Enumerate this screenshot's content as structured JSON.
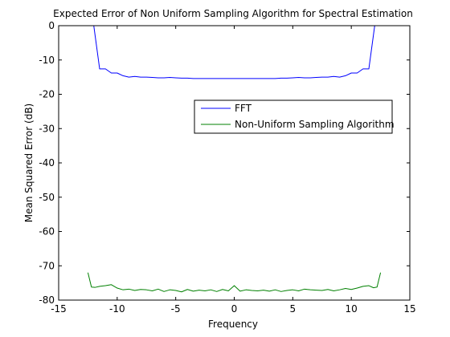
{
  "chart_data": {
    "type": "line",
    "title": "Expected Error of Non Uniform Sampling Algorithm for Spectral Estimation",
    "xlabel": "Frequency",
    "ylabel": "Mean Squared Error (dB)",
    "xlim": [
      -15,
      15
    ],
    "ylim": [
      -80,
      0
    ],
    "xticks": [
      -15,
      -10,
      -5,
      0,
      5,
      10,
      15
    ],
    "yticks": [
      0,
      -10,
      -20,
      -30,
      -40,
      -50,
      -60,
      -70,
      -80
    ],
    "grid": false,
    "legend_position": "center-right",
    "series": [
      {
        "name": "FFT",
        "color": "#0000ff",
        "x": [
          -12.5,
          -12.0,
          -11.5,
          -11.0,
          -10.5,
          -10.0,
          -9.5,
          -9.0,
          -8.5,
          -8.0,
          -7.5,
          -7.0,
          -6.5,
          -6.0,
          -5.5,
          -5.0,
          -4.5,
          -4.0,
          -3.5,
          -3.0,
          -2.5,
          -2.0,
          -1.5,
          -1.0,
          -0.5,
          0.0,
          0.5,
          1.0,
          1.5,
          2.0,
          2.5,
          3.0,
          3.5,
          4.0,
          4.5,
          5.0,
          5.5,
          6.0,
          6.5,
          7.0,
          7.5,
          8.0,
          8.5,
          9.0,
          9.5,
          10.0,
          10.5,
          11.0,
          11.5,
          12.0,
          12.5
        ],
        "y": [
          0,
          0,
          -12.6,
          -12.6,
          -13.8,
          -13.8,
          -14.6,
          -15.0,
          -14.8,
          -15.0,
          -15.0,
          -15.1,
          -15.2,
          -15.2,
          -15.1,
          -15.2,
          -15.3,
          -15.3,
          -15.4,
          -15.4,
          -15.4,
          -15.4,
          -15.4,
          -15.4,
          -15.4,
          -15.4,
          -15.4,
          -15.4,
          -15.4,
          -15.4,
          -15.4,
          -15.4,
          -15.4,
          -15.3,
          -15.3,
          -15.2,
          -15.1,
          -15.2,
          -15.2,
          -15.1,
          -15.0,
          -15.0,
          -14.8,
          -15.0,
          -14.6,
          -13.8,
          -13.8,
          -12.6,
          -12.6,
          0,
          0
        ]
      },
      {
        "name": "Non-Uniform Sampling Algorithm",
        "color": "#008000",
        "x": [
          -12.5,
          -12.2,
          -11.9,
          -11.5,
          -11.0,
          -10.5,
          -10.0,
          -9.5,
          -9.0,
          -8.5,
          -8.0,
          -7.5,
          -7.0,
          -6.5,
          -6.0,
          -5.5,
          -5.0,
          -4.5,
          -4.0,
          -3.5,
          -3.0,
          -2.5,
          -2.0,
          -1.5,
          -1.0,
          -0.5,
          0.0,
          0.5,
          1.0,
          1.5,
          2.0,
          2.5,
          3.0,
          3.5,
          4.0,
          4.5,
          5.0,
          5.5,
          6.0,
          6.5,
          7.0,
          7.5,
          8.0,
          8.5,
          9.0,
          9.5,
          10.0,
          10.5,
          11.0,
          11.5,
          11.9,
          12.2,
          12.5
        ],
        "y": [
          -72.0,
          -76.2,
          -76.3,
          -76.0,
          -75.8,
          -75.5,
          -76.5,
          -77.0,
          -76.8,
          -77.2,
          -76.9,
          -77.0,
          -77.3,
          -76.8,
          -77.5,
          -77.0,
          -77.2,
          -77.6,
          -76.9,
          -77.4,
          -77.1,
          -77.3,
          -77.0,
          -77.5,
          -76.9,
          -77.3,
          -75.8,
          -77.4,
          -77.0,
          -77.2,
          -77.3,
          -77.1,
          -77.4,
          -77.0,
          -77.5,
          -77.2,
          -77.0,
          -77.3,
          -76.8,
          -77.0,
          -77.1,
          -77.2,
          -76.9,
          -77.3,
          -77.0,
          -76.6,
          -76.9,
          -76.5,
          -76.0,
          -75.8,
          -76.4,
          -76.2,
          -72.0
        ]
      }
    ]
  }
}
